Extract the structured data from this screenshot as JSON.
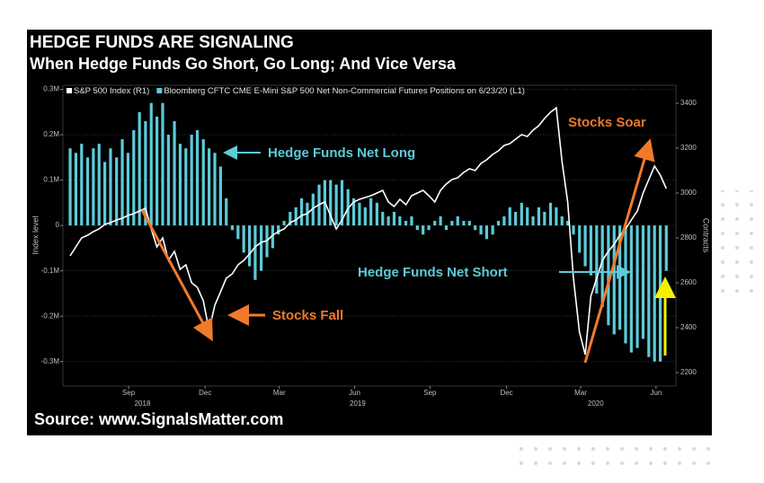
{
  "chart_data": {
    "type": "bar",
    "title": "HEDGE FUNDS ARE SIGNALING",
    "subtitle": "When Hedge Funds Go Short, Go Long; And Vice Versa",
    "source": "Source:  www.SignalsMatter.com",
    "ylabel": "Index level",
    "y2label": "Contracts",
    "annotations": [
      "Hedge Funds Net Long",
      "Hedge Funds Net Short",
      "Stocks Fall",
      "Stocks Soar"
    ],
    "x": [
      2018.51,
      2018.529,
      2018.548,
      2018.568,
      2018.587,
      2018.606,
      2018.625,
      2018.644,
      2018.664,
      2018.683,
      2018.702,
      2018.721,
      2018.74,
      2018.76,
      2018.779,
      2018.798,
      2018.817,
      2018.836,
      2018.856,
      2018.875,
      2018.894,
      2018.913,
      2018.932,
      2018.952,
      2018.971,
      2018.99,
      2019.009,
      2019.028,
      2019.048,
      2019.067,
      2019.086,
      2019.105,
      2019.124,
      2019.144,
      2019.163,
      2019.182,
      2019.201,
      2019.22,
      2019.24,
      2019.259,
      2019.278,
      2019.297,
      2019.316,
      2019.336,
      2019.355,
      2019.374,
      2019.393,
      2019.412,
      2019.432,
      2019.451,
      2019.47,
      2019.489,
      2019.508,
      2019.528,
      2019.547,
      2019.566,
      2019.585,
      2019.604,
      2019.624,
      2019.643,
      2019.662,
      2019.681,
      2019.7,
      2019.72,
      2019.739,
      2019.758,
      2019.777,
      2019.796,
      2019.816,
      2019.835,
      2019.854,
      2019.873,
      2019.892,
      2019.912,
      2019.931,
      2019.95,
      2019.969,
      2019.988,
      2020.008,
      2020.027,
      2020.046,
      2020.065,
      2020.084,
      2020.104,
      2020.123,
      2020.142,
      2020.161,
      2020.18,
      2020.2,
      2020.219,
      2020.238,
      2020.257,
      2020.276,
      2020.296,
      2020.315,
      2020.334,
      2020.353,
      2020.372,
      2020.392,
      2020.411,
      2020.43,
      2020.449,
      2020.468,
      2020.488
    ],
    "series": [
      {
        "name": "S&P 500 Index (R1)",
        "type": "line",
        "axis": "y2",
        "color": "#ffffff",
        "values": [
          2720,
          2760,
          2800,
          2812,
          2828,
          2840,
          2860,
          2868,
          2880,
          2888,
          2900,
          2908,
          2920,
          2932,
          2840,
          2760,
          2800,
          2700,
          2740,
          2660,
          2680,
          2600,
          2580,
          2520,
          2388,
          2500,
          2560,
          2620,
          2640,
          2680,
          2700,
          2728,
          2760,
          2780,
          2788,
          2812,
          2828,
          2840,
          2868,
          2880,
          2900,
          2908,
          2932,
          2948,
          2960,
          2900,
          2840,
          2880,
          2932,
          2960,
          2972,
          2980,
          2988,
          3000,
          3012,
          2960,
          2940,
          2972,
          2948,
          2988,
          3000,
          3012,
          2988,
          2960,
          3012,
          3040,
          3060,
          3068,
          3092,
          3108,
          3100,
          3132,
          3148,
          3172,
          3188,
          3212,
          3220,
          3240,
          3260,
          3252,
          3280,
          3300,
          3332,
          3360,
          3380,
          3140,
          2960,
          2620,
          2380,
          2280,
          2540,
          2620,
          2700,
          2740,
          2772,
          2812,
          2840,
          2880,
          2920,
          3000,
          3060,
          3120,
          3080,
          3020
        ]
      },
      {
        "name": "Bloomberg CFTC CME E-Mini S&P 500 Net Non-Commercial Futures Positions  on 6/23/20 (L1)",
        "type": "bar",
        "color": "#5ccbd8",
        "values": [
          170000,
          160000,
          180000,
          150000,
          170000,
          180000,
          140000,
          170000,
          150000,
          190000,
          160000,
          210000,
          250000,
          230000,
          270000,
          240000,
          270000,
          200000,
          230000,
          180000,
          170000,
          200000,
          210000,
          190000,
          170000,
          160000,
          130000,
          60000,
          -10000,
          -30000,
          -60000,
          -90000,
          -120000,
          -100000,
          -70000,
          -50000,
          -20000,
          10000,
          30000,
          40000,
          60000,
          50000,
          70000,
          90000,
          100000,
          100000,
          90000,
          100000,
          80000,
          60000,
          50000,
          40000,
          60000,
          50000,
          30000,
          20000,
          30000,
          20000,
          10000,
          20000,
          -10000,
          -20000,
          -10000,
          10000,
          20000,
          -10000,
          10000,
          20000,
          10000,
          10000,
          -10000,
          -20000,
          -30000,
          -20000,
          10000,
          20000,
          40000,
          30000,
          50000,
          40000,
          20000,
          40000,
          30000,
          50000,
          40000,
          20000,
          10000,
          -20000,
          -60000,
          -90000,
          -110000,
          -150000,
          -180000,
          -220000,
          -240000,
          -230000,
          -260000,
          -280000,
          -270000,
          -250000,
          -290000,
          -300000,
          -300000,
          -100000
        ]
      }
    ],
    "xlim": [
      2018.486,
      2020.52
    ],
    "xticks": [
      {
        "value": 2018.704,
        "label": "Sep"
      },
      {
        "value": 2018.958,
        "label": "Dec"
      },
      {
        "value": 2019.204,
        "label": "Mar"
      },
      {
        "value": 2019.454,
        "label": "Jun"
      },
      {
        "value": 2019.704,
        "label": "Sep"
      },
      {
        "value": 2019.958,
        "label": "Dec"
      },
      {
        "value": 2020.204,
        "label": "Mar"
      },
      {
        "value": 2020.454,
        "label": "Jun"
      }
    ],
    "xyears": [
      {
        "value": 2018.75,
        "label": "2018"
      },
      {
        "value": 2019.464,
        "label": "2019"
      },
      {
        "value": 2020.254,
        "label": "2020"
      }
    ],
    "ylim": [
      -354000,
      309000
    ],
    "yticks": [
      {
        "value": 300000,
        "label": "0.3M"
      },
      {
        "value": 200000,
        "label": "0.2M"
      },
      {
        "value": 100000,
        "label": "0.1M"
      },
      0,
      {
        "value": -100000,
        "label": "-0.1M"
      },
      {
        "value": -200000,
        "label": "-0.2M"
      },
      {
        "value": -300000,
        "label": "-0.3M"
      }
    ],
    "y2lim": [
      2140,
      3480
    ],
    "y2ticks": [
      2200,
      2400,
      2600,
      2800,
      3000,
      3200,
      3400
    ],
    "grid": true
  }
}
